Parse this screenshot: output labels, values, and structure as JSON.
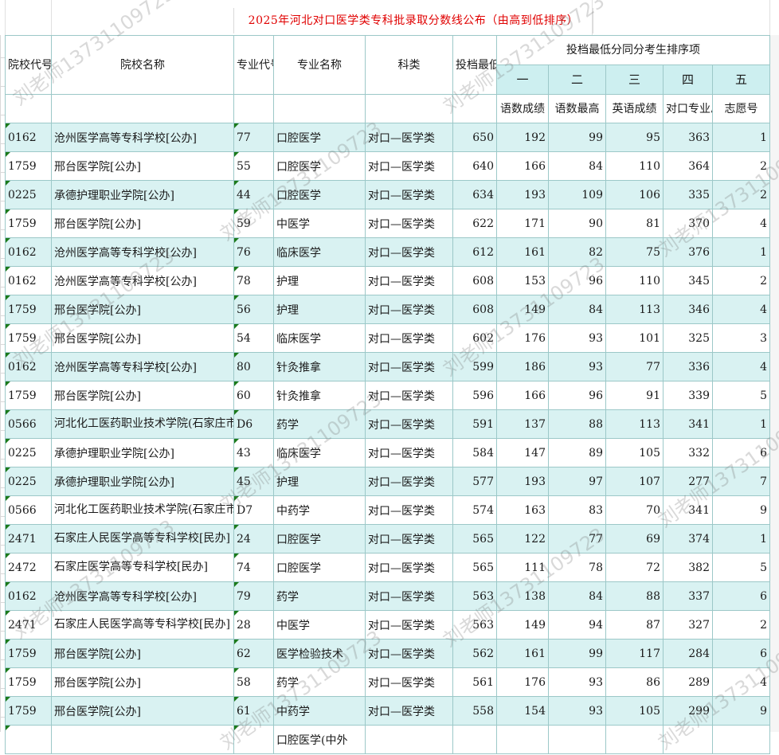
{
  "title": "2025年河北对口医学类专科批录取分数线公布（由高到低排序）",
  "headers": {
    "school_code": "院校代号",
    "school_name": "院校名称",
    "major_code": "专业代号",
    "major_name": "专业名称",
    "subject": "科类",
    "min_score": "投档最低分",
    "tie_group": "投档最低分同分考生排序项",
    "tie_ranks": [
      "一",
      "二",
      "三",
      "四",
      "五"
    ],
    "tie_items": [
      "语数成绩",
      "语数最高",
      "英语成绩",
      "对口专业总成",
      "志愿号"
    ]
  },
  "rows": [
    {
      "school_code": "0162",
      "school_name": "沧州医学高等专科学校[公办]",
      "major_code": "77",
      "major_name": "口腔医学",
      "subject": "对口—医学类",
      "min_score": "650",
      "s1": "192",
      "s2": "99",
      "s3": "95",
      "s4": "363",
      "s5": "1"
    },
    {
      "school_code": "1759",
      "school_name": "邢台医学院[公办]",
      "major_code": "55",
      "major_name": "口腔医学",
      "subject": "对口—医学类",
      "min_score": "640",
      "s1": "166",
      "s2": "84",
      "s3": "110",
      "s4": "364",
      "s5": "2"
    },
    {
      "school_code": "0225",
      "school_name": "承德护理职业学院[公办]",
      "major_code": "44",
      "major_name": "口腔医学",
      "subject": "对口—医学类",
      "min_score": "634",
      "s1": "193",
      "s2": "109",
      "s3": "106",
      "s4": "335",
      "s5": "2"
    },
    {
      "school_code": "1759",
      "school_name": "邢台医学院[公办]",
      "major_code": "59",
      "major_name": "中医学",
      "subject": "对口—医学类",
      "min_score": "622",
      "s1": "171",
      "s2": "90",
      "s3": "81",
      "s4": "370",
      "s5": "4"
    },
    {
      "school_code": "0162",
      "school_name": "沧州医学高等专科学校[公办]",
      "major_code": "76",
      "major_name": "临床医学",
      "subject": "对口—医学类",
      "min_score": "612",
      "s1": "161",
      "s2": "82",
      "s3": "75",
      "s4": "376",
      "s5": "1"
    },
    {
      "school_code": "0162",
      "school_name": "沧州医学高等专科学校[公办]",
      "major_code": "78",
      "major_name": "护理",
      "subject": "对口—医学类",
      "min_score": "608",
      "s1": "153",
      "s2": "96",
      "s3": "110",
      "s4": "345",
      "s5": "2"
    },
    {
      "school_code": "1759",
      "school_name": "邢台医学院[公办]",
      "major_code": "56",
      "major_name": "护理",
      "subject": "对口—医学类",
      "min_score": "608",
      "s1": "149",
      "s2": "84",
      "s3": "113",
      "s4": "346",
      "s5": "4"
    },
    {
      "school_code": "1759",
      "school_name": "邢台医学院[公办]",
      "major_code": "54",
      "major_name": "临床医学",
      "subject": "对口—医学类",
      "min_score": "602",
      "s1": "176",
      "s2": "93",
      "s3": "101",
      "s4": "325",
      "s5": "3"
    },
    {
      "school_code": "0162",
      "school_name": "沧州医学高等专科学校[公办]",
      "major_code": "80",
      "major_name": "针灸推拿",
      "subject": "对口—医学类",
      "min_score": "599",
      "s1": "186",
      "s2": "93",
      "s3": "77",
      "s4": "336",
      "s5": "4"
    },
    {
      "school_code": "1759",
      "school_name": "邢台医学院[公办]",
      "major_code": "60",
      "major_name": "针灸推拿",
      "subject": "对口—医学类",
      "min_score": "596",
      "s1": "166",
      "s2": "96",
      "s3": "91",
      "s4": "339",
      "s5": "5"
    },
    {
      "school_code": "0566",
      "school_name": "河北化工医药职业技术学院(石家庄市)[公办]",
      "major_code": "D6",
      "major_name": "药学",
      "subject": "对口—医学类",
      "min_score": "591",
      "s1": "137",
      "s2": "88",
      "s3": "113",
      "s4": "341",
      "s5": "1"
    },
    {
      "school_code": "0225",
      "school_name": "承德护理职业学院[公办]",
      "major_code": "43",
      "major_name": "临床医学",
      "subject": "对口—医学类",
      "min_score": "584",
      "s1": "147",
      "s2": "89",
      "s3": "105",
      "s4": "332",
      "s5": "6"
    },
    {
      "school_code": "0225",
      "school_name": "承德护理职业学院[公办]",
      "major_code": "45",
      "major_name": "护理",
      "subject": "对口—医学类",
      "min_score": "577",
      "s1": "193",
      "s2": "97",
      "s3": "107",
      "s4": "277",
      "s5": "7"
    },
    {
      "school_code": "0566",
      "school_name": "河北化工医药职业技术学院(石家庄市)[公办]",
      "major_code": "D7",
      "major_name": "中药学",
      "subject": "对口—医学类",
      "min_score": "574",
      "s1": "163",
      "s2": "83",
      "s3": "70",
      "s4": "341",
      "s5": "9"
    },
    {
      "school_code": "2471",
      "school_name": "石家庄人民医学高等专科学校[民办]",
      "major_code": "24",
      "major_name": "口腔医学",
      "subject": "对口—医学类",
      "min_score": "565",
      "s1": "122",
      "s2": "77",
      "s3": "69",
      "s4": "374",
      "s5": "1"
    },
    {
      "school_code": "2472",
      "school_name": "石家庄医学高等专科学校[民办]",
      "major_code": "74",
      "major_name": "口腔医学",
      "subject": "对口—医学类",
      "min_score": "565",
      "s1": "111",
      "s2": "78",
      "s3": "72",
      "s4": "382",
      "s5": "5"
    },
    {
      "school_code": "0162",
      "school_name": "沧州医学高等专科学校[公办]",
      "major_code": "79",
      "major_name": "药学",
      "subject": "对口—医学类",
      "min_score": "563",
      "s1": "138",
      "s2": "84",
      "s3": "88",
      "s4": "337",
      "s5": "6"
    },
    {
      "school_code": "2471",
      "school_name": "石家庄人民医学高等专科学校[民办]",
      "major_code": "28",
      "major_name": "中医学",
      "subject": "对口—医学类",
      "min_score": "563",
      "s1": "149",
      "s2": "94",
      "s3": "87",
      "s4": "327",
      "s5": "2"
    },
    {
      "school_code": "1759",
      "school_name": "邢台医学院[公办]",
      "major_code": "62",
      "major_name": "医学检验技术",
      "subject": "对口—医学类",
      "min_score": "562",
      "s1": "161",
      "s2": "99",
      "s3": "117",
      "s4": "284",
      "s5": "6"
    },
    {
      "school_code": "1759",
      "school_name": "邢台医学院[公办]",
      "major_code": "58",
      "major_name": "药学",
      "subject": "对口—医学类",
      "min_score": "561",
      "s1": "176",
      "s2": "93",
      "s3": "86",
      "s4": "289",
      "s5": "4"
    },
    {
      "school_code": "1759",
      "school_name": "邢台医学院[公办]",
      "major_code": "61",
      "major_name": "中药学",
      "subject": "对口—医学类",
      "min_score": "558",
      "s1": "154",
      "s2": "93",
      "s3": "105",
      "s4": "299",
      "s5": "9"
    },
    {
      "school_code": "",
      "school_name": "",
      "major_code": "",
      "major_name": "口腔医学(中外",
      "subject": "",
      "min_score": "",
      "s1": "",
      "s2": "",
      "s3": "",
      "s4": "",
      "s5": ""
    }
  ],
  "watermark": "刘老师13731109723"
}
